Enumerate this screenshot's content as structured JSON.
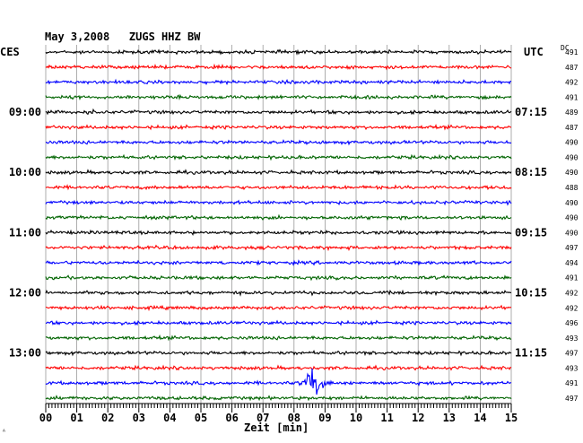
{
  "header": {
    "title": "May 3,2008   ZUGS HHZ BW",
    "left_zone": "CES",
    "right_zone": "UTC",
    "dc_label": "DC",
    "corner_mark": "ᴬ"
  },
  "chart_data": {
    "type": "line",
    "title": "May 3,2008   ZUGS HHZ BW",
    "xlabel": "Zeit [min]",
    "ylabel": "",
    "xlim": [
      0,
      15
    ],
    "x_ticks": [
      "00",
      "01",
      "02",
      "03",
      "04",
      "05",
      "06",
      "07",
      "08",
      "09",
      "10",
      "11",
      "12",
      "13",
      "14",
      "15"
    ],
    "traces_per_hour": 4,
    "trace_colors": [
      "#000000",
      "#ff0000",
      "#0000ff",
      "#006400"
    ],
    "left_hour_labels": [
      {
        "row": 4,
        "text": "09:00"
      },
      {
        "row": 8,
        "text": "10:00"
      },
      {
        "row": 12,
        "text": "11:00"
      },
      {
        "row": 16,
        "text": "12:00"
      },
      {
        "row": 20,
        "text": "13:00"
      }
    ],
    "right_hour_labels": [
      {
        "row": 4,
        "text": "07:15"
      },
      {
        "row": 8,
        "text": "08:15"
      },
      {
        "row": 12,
        "text": "09:15"
      },
      {
        "row": 16,
        "text": "10:15"
      },
      {
        "row": 20,
        "text": "11:15"
      }
    ],
    "dc_offsets": [
      "491",
      "487",
      "492",
      "491",
      "489",
      "487",
      "490",
      "490",
      "490",
      "488",
      "490",
      "490",
      "490",
      "497",
      "494",
      "491",
      "492",
      "492",
      "496",
      "493",
      "497",
      "493",
      "491",
      "497"
    ],
    "events": [
      {
        "row": 4,
        "minute": 1.5,
        "amplitude": "small"
      },
      {
        "row": 14,
        "minute": 5.6,
        "amplitude": "small"
      },
      {
        "row": 22,
        "minute": 8.4,
        "amplitude": "large"
      }
    ],
    "grid": true
  }
}
